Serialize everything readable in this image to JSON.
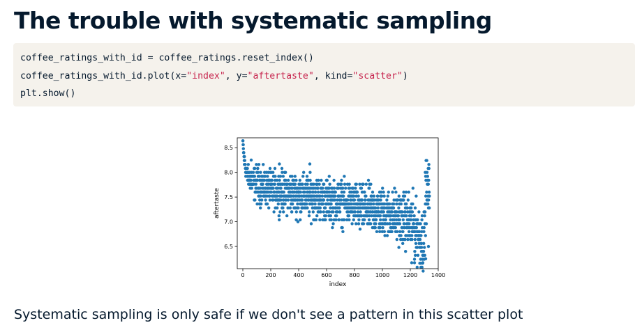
{
  "title": "The trouble with systematic sampling",
  "code": {
    "line1": {
      "text": "coffee_ratings_with_id = coffee_ratings.reset_index()"
    },
    "line2": {
      "pre": "coffee_ratings_with_id.plot(x=",
      "s1": "\"index\"",
      "mid1": ", y=",
      "s2": "\"aftertaste\"",
      "mid2": ", kind=",
      "s3": "\"scatter\"",
      "post": ")"
    },
    "line3": {
      "text": "plt.show()"
    }
  },
  "caption": "Systematic sampling is only safe if we don't see a pattern in this scatter plot",
  "chart_data": {
    "type": "scatter",
    "xlabel": "index",
    "ylabel": "aftertaste",
    "xlim": [
      -40,
      1400
    ],
    "ylim": [
      6.05,
      8.7
    ],
    "x_ticks": [
      0,
      200,
      400,
      600,
      800,
      1000,
      1200,
      1400
    ],
    "y_ticks": [
      6.5,
      7.0,
      7.5,
      8.0,
      8.5
    ],
    "x_tick_labels": [
      "0",
      "200",
      "400",
      "600",
      "800",
      "1000",
      "1200",
      "1400"
    ],
    "y_tick_labels": [
      "6.5",
      "7.0",
      "7.5",
      "8.0",
      "8.5"
    ],
    "grid": false,
    "marker_color": "#1f77b4",
    "n_points": 1338,
    "y_resolution": 0.08,
    "trend": [
      [
        0,
        8.6
      ],
      [
        10,
        8.25
      ],
      [
        30,
        7.95
      ],
      [
        80,
        7.78
      ],
      [
        200,
        7.65
      ],
      [
        400,
        7.55
      ],
      [
        600,
        7.45
      ],
      [
        800,
        7.33
      ],
      [
        1000,
        7.2
      ],
      [
        1100,
        7.12
      ],
      [
        1200,
        7.0
      ],
      [
        1250,
        6.8
      ],
      [
        1300,
        6.55
      ],
      [
        1310,
        7.6
      ],
      [
        1338,
        7.6
      ]
    ],
    "spread": [
      [
        0,
        0.05
      ],
      [
        30,
        0.1
      ],
      [
        100,
        0.18
      ],
      [
        400,
        0.2
      ],
      [
        800,
        0.22
      ],
      [
        1100,
        0.24
      ],
      [
        1200,
        0.28
      ],
      [
        1300,
        0.32
      ],
      [
        1338,
        0.3
      ]
    ],
    "outliers": [
      {
        "x": 60,
        "y": 8.25
      },
      {
        "x": 262,
        "y": 8.17
      },
      {
        "x": 480,
        "y": 8.17
      },
      {
        "x": 395,
        "y": 7.0
      },
      {
        "x": 840,
        "y": 6.85
      },
      {
        "x": 1210,
        "y": 6.17
      },
      {
        "x": 1230,
        "y": 6.17
      },
      {
        "x": 1290,
        "y": 6.17
      },
      {
        "x": 1310,
        "y": 6.25
      },
      {
        "x": 1330,
        "y": 6.5
      },
      {
        "x": 1322,
        "y": 7.92
      }
    ]
  }
}
